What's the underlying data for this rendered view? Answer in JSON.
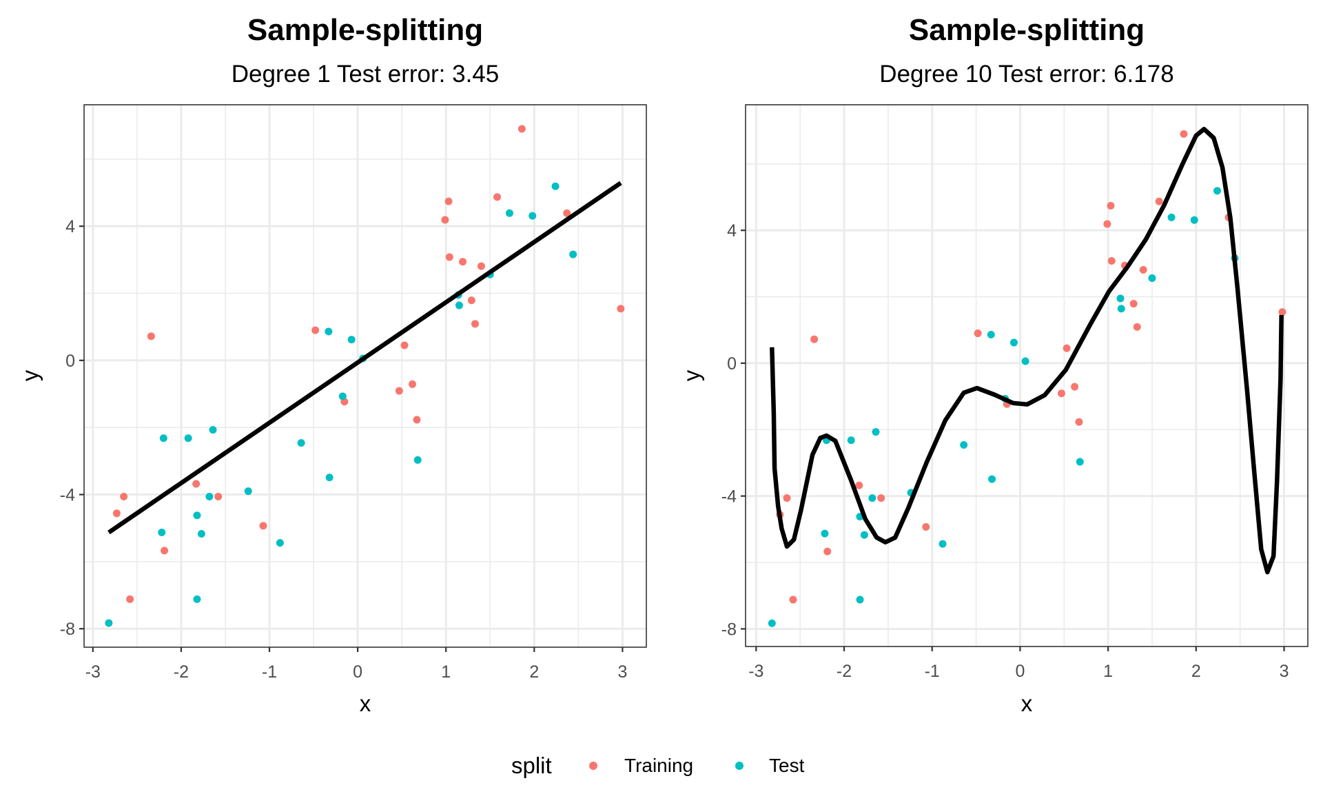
{
  "colors": {
    "training": "#F8766D",
    "test": "#00BFC4",
    "fit_line": "#000000",
    "grid": "#EBEBEB",
    "panel_border": "#333333",
    "tick_text": "#4D4D4D"
  },
  "legend": {
    "title": "split",
    "position": "bottom",
    "entries": [
      {
        "label": "Training",
        "key": "training"
      },
      {
        "label": "Test",
        "key": "test"
      }
    ]
  },
  "chart_data": [
    {
      "type": "scatter",
      "title": "Sample-splitting",
      "subtitle": "Degree 1 Test error: 3.45",
      "xlabel": "x",
      "ylabel": "y",
      "xlim": [
        -3.1,
        3.27
      ],
      "ylim": [
        -8.55,
        7.62
      ],
      "xticks": [
        -3,
        -2,
        -1,
        0,
        1,
        2,
        3
      ],
      "xtick_labels": [
        "-3",
        "-2",
        "-1",
        "0",
        "1",
        "2",
        "3"
      ],
      "yticks": [
        -8,
        -4,
        0,
        4
      ],
      "ytick_labels": [
        "-8",
        "-4",
        "0",
        "4"
      ],
      "grid": true,
      "series": [
        {
          "name": "Training",
          "key": "training",
          "points": [
            [
              -2.58,
              -7.12
            ],
            [
              -2.73,
              -4.56
            ],
            [
              -2.65,
              -4.06
            ],
            [
              -2.19,
              -5.67
            ],
            [
              -2.34,
              0.72
            ],
            [
              -1.83,
              -3.68
            ],
            [
              -1.58,
              -4.06
            ],
            [
              -1.07,
              -4.93
            ],
            [
              -0.48,
              0.9
            ],
            [
              -0.15,
              -1.23
            ],
            [
              0.53,
              0.45
            ],
            [
              0.47,
              -0.91
            ],
            [
              0.62,
              -0.71
            ],
            [
              0.67,
              -1.77
            ],
            [
              1.86,
              6.9
            ],
            [
              1.03,
              4.74
            ],
            [
              1.58,
              4.87
            ],
            [
              0.99,
              4.19
            ],
            [
              2.37,
              4.39
            ],
            [
              1.04,
              3.08
            ],
            [
              1.19,
              2.94
            ],
            [
              1.4,
              2.81
            ],
            [
              1.29,
              1.79
            ],
            [
              1.33,
              1.09
            ],
            [
              2.98,
              1.54
            ]
          ]
        },
        {
          "name": "Test",
          "key": "test",
          "points": [
            [
              -2.82,
              -7.83
            ],
            [
              -1.82,
              -7.12
            ],
            [
              -2.22,
              -5.13
            ],
            [
              -2.2,
              -2.32
            ],
            [
              -1.92,
              -2.32
            ],
            [
              -1.64,
              -2.07
            ],
            [
              -1.68,
              -4.06
            ],
            [
              -1.82,
              -4.62
            ],
            [
              -1.77,
              -5.17
            ],
            [
              -1.24,
              -3.9
            ],
            [
              -0.88,
              -5.44
            ],
            [
              -0.64,
              -2.46
            ],
            [
              -0.32,
              -3.49
            ],
            [
              -0.17,
              -1.07
            ],
            [
              -0.33,
              0.86
            ],
            [
              -0.07,
              0.62
            ],
            [
              0.06,
              0.06
            ],
            [
              0.68,
              -2.97
            ],
            [
              2.24,
              5.19
            ],
            [
              1.72,
              4.39
            ],
            [
              1.98,
              4.31
            ],
            [
              2.44,
              3.16
            ],
            [
              1.5,
              2.56
            ],
            [
              1.14,
              1.95
            ],
            [
              1.15,
              1.64
            ]
          ]
        }
      ],
      "fit": {
        "name": "Degree 1 fit",
        "points": [
          [
            -2.82,
            -5.13
          ],
          [
            2.98,
            5.29
          ]
        ]
      }
    },
    {
      "type": "scatter",
      "title": "Sample-splitting",
      "subtitle": "Degree 10 Test error: 6.178",
      "xlabel": "x",
      "ylabel": "y",
      "xlim": [
        -3.12,
        3.27
      ],
      "ylim": [
        -8.53,
        7.78
      ],
      "xticks": [
        -3,
        -2,
        -1,
        0,
        1,
        2,
        3
      ],
      "xtick_labels": [
        "-3",
        "-2",
        "-1",
        "0",
        "1",
        "2",
        "3"
      ],
      "yticks": [
        -8,
        -4,
        0,
        4
      ],
      "ytick_labels": [
        "-8",
        "-4",
        "0",
        "4"
      ],
      "grid": true,
      "series": [
        {
          "name": "Training",
          "key": "training",
          "points": [
            [
              -2.58,
              -7.12
            ],
            [
              -2.73,
              -4.56
            ],
            [
              -2.65,
              -4.06
            ],
            [
              -2.19,
              -5.67
            ],
            [
              -2.34,
              0.72
            ],
            [
              -1.83,
              -3.68
            ],
            [
              -1.58,
              -4.06
            ],
            [
              -1.07,
              -4.93
            ],
            [
              -0.48,
              0.9
            ],
            [
              -0.15,
              -1.23
            ],
            [
              0.53,
              0.45
            ],
            [
              0.47,
              -0.91
            ],
            [
              0.62,
              -0.71
            ],
            [
              0.67,
              -1.77
            ],
            [
              1.86,
              6.9
            ],
            [
              1.03,
              4.74
            ],
            [
              1.58,
              4.87
            ],
            [
              0.99,
              4.19
            ],
            [
              2.37,
              4.39
            ],
            [
              1.04,
              3.08
            ],
            [
              1.19,
              2.94
            ],
            [
              1.4,
              2.81
            ],
            [
              1.29,
              1.79
            ],
            [
              1.33,
              1.09
            ],
            [
              2.98,
              1.54
            ]
          ]
        },
        {
          "name": "Test",
          "key": "test",
          "points": [
            [
              -2.82,
              -7.83
            ],
            [
              -1.82,
              -7.12
            ],
            [
              -2.22,
              -5.13
            ],
            [
              -2.2,
              -2.32
            ],
            [
              -1.92,
              -2.32
            ],
            [
              -1.64,
              -2.07
            ],
            [
              -1.68,
              -4.06
            ],
            [
              -1.82,
              -4.62
            ],
            [
              -1.77,
              -5.17
            ],
            [
              -1.24,
              -3.9
            ],
            [
              -0.88,
              -5.44
            ],
            [
              -0.64,
              -2.46
            ],
            [
              -0.32,
              -3.49
            ],
            [
              -0.17,
              -1.07
            ],
            [
              -0.33,
              0.86
            ],
            [
              -0.07,
              0.62
            ],
            [
              0.06,
              0.06
            ],
            [
              0.68,
              -2.97
            ],
            [
              2.24,
              5.19
            ],
            [
              1.72,
              4.39
            ],
            [
              1.98,
              4.31
            ],
            [
              2.44,
              3.16
            ],
            [
              1.5,
              2.56
            ],
            [
              1.14,
              1.95
            ],
            [
              1.15,
              1.64
            ]
          ]
        }
      ],
      "fit": {
        "name": "Degree 10 fit",
        "points": [
          [
            -2.82,
            0.48
          ],
          [
            -2.8,
            -1.5
          ],
          [
            -2.79,
            -3.17
          ],
          [
            -2.75,
            -4.3
          ],
          [
            -2.71,
            -4.98
          ],
          [
            -2.65,
            -5.52
          ],
          [
            -2.57,
            -5.31
          ],
          [
            -2.49,
            -4.42
          ],
          [
            -2.36,
            -2.76
          ],
          [
            -2.27,
            -2.25
          ],
          [
            -2.2,
            -2.18
          ],
          [
            -2.1,
            -2.34
          ],
          [
            -1.92,
            -3.53
          ],
          [
            -1.76,
            -4.69
          ],
          [
            -1.63,
            -5.25
          ],
          [
            -1.53,
            -5.39
          ],
          [
            -1.42,
            -5.25
          ],
          [
            -1.27,
            -4.36
          ],
          [
            -1.06,
            -2.97
          ],
          [
            -0.85,
            -1.72
          ],
          [
            -0.64,
            -0.89
          ],
          [
            -0.49,
            -0.75
          ],
          [
            -0.29,
            -0.95
          ],
          [
            -0.08,
            -1.2
          ],
          [
            0.08,
            -1.24
          ],
          [
            0.28,
            -0.96
          ],
          [
            0.52,
            -0.2
          ],
          [
            0.8,
            1.18
          ],
          [
            1.01,
            2.16
          ],
          [
            1.22,
            2.9
          ],
          [
            1.43,
            3.73
          ],
          [
            1.64,
            4.77
          ],
          [
            1.85,
            6.02
          ],
          [
            2.0,
            6.85
          ],
          [
            2.09,
            7.05
          ],
          [
            2.2,
            6.78
          ],
          [
            2.3,
            5.89
          ],
          [
            2.39,
            4.36
          ],
          [
            2.47,
            2.28
          ],
          [
            2.58,
            -0.83
          ],
          [
            2.66,
            -3.24
          ],
          [
            2.74,
            -5.6
          ],
          [
            2.81,
            -6.29
          ],
          [
            2.88,
            -5.81
          ],
          [
            2.92,
            -3.53
          ],
          [
            2.96,
            -0.48
          ],
          [
            2.97,
            1.45
          ]
        ]
      }
    }
  ]
}
